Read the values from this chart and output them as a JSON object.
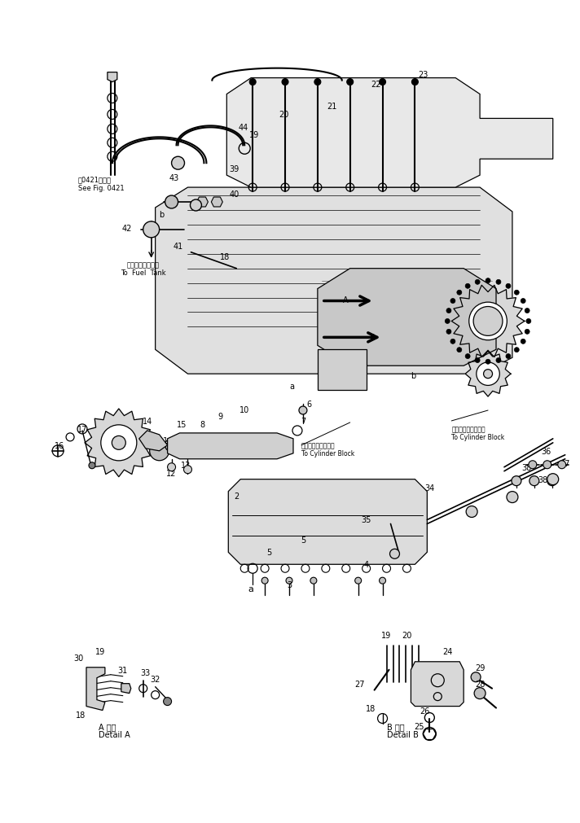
{
  "bg_color": "#ffffff",
  "line_color": "#000000",
  "fig_width": 7.12,
  "fig_height": 10.12,
  "dpi": 100,
  "texts": {
    "see_fig_jp": "図0421図参照",
    "see_fig_en": "See Fig. 0421",
    "fuel_tank_jp": "フュエルタンクへ",
    "fuel_tank_en": "To  Fuel  Tank",
    "cyl_block_jp1": "シリンダブロックへ",
    "cyl_block_en1": "To Cylinder Block",
    "cyl_block_jp2": "シリンダブロックへ",
    "cyl_block_en2": "To Cylinder Block",
    "detail_a_jp": "A 詳細",
    "detail_a_en": "Detail A",
    "detail_b_jp": "B 詳細",
    "detail_b_en": "Detail B"
  }
}
